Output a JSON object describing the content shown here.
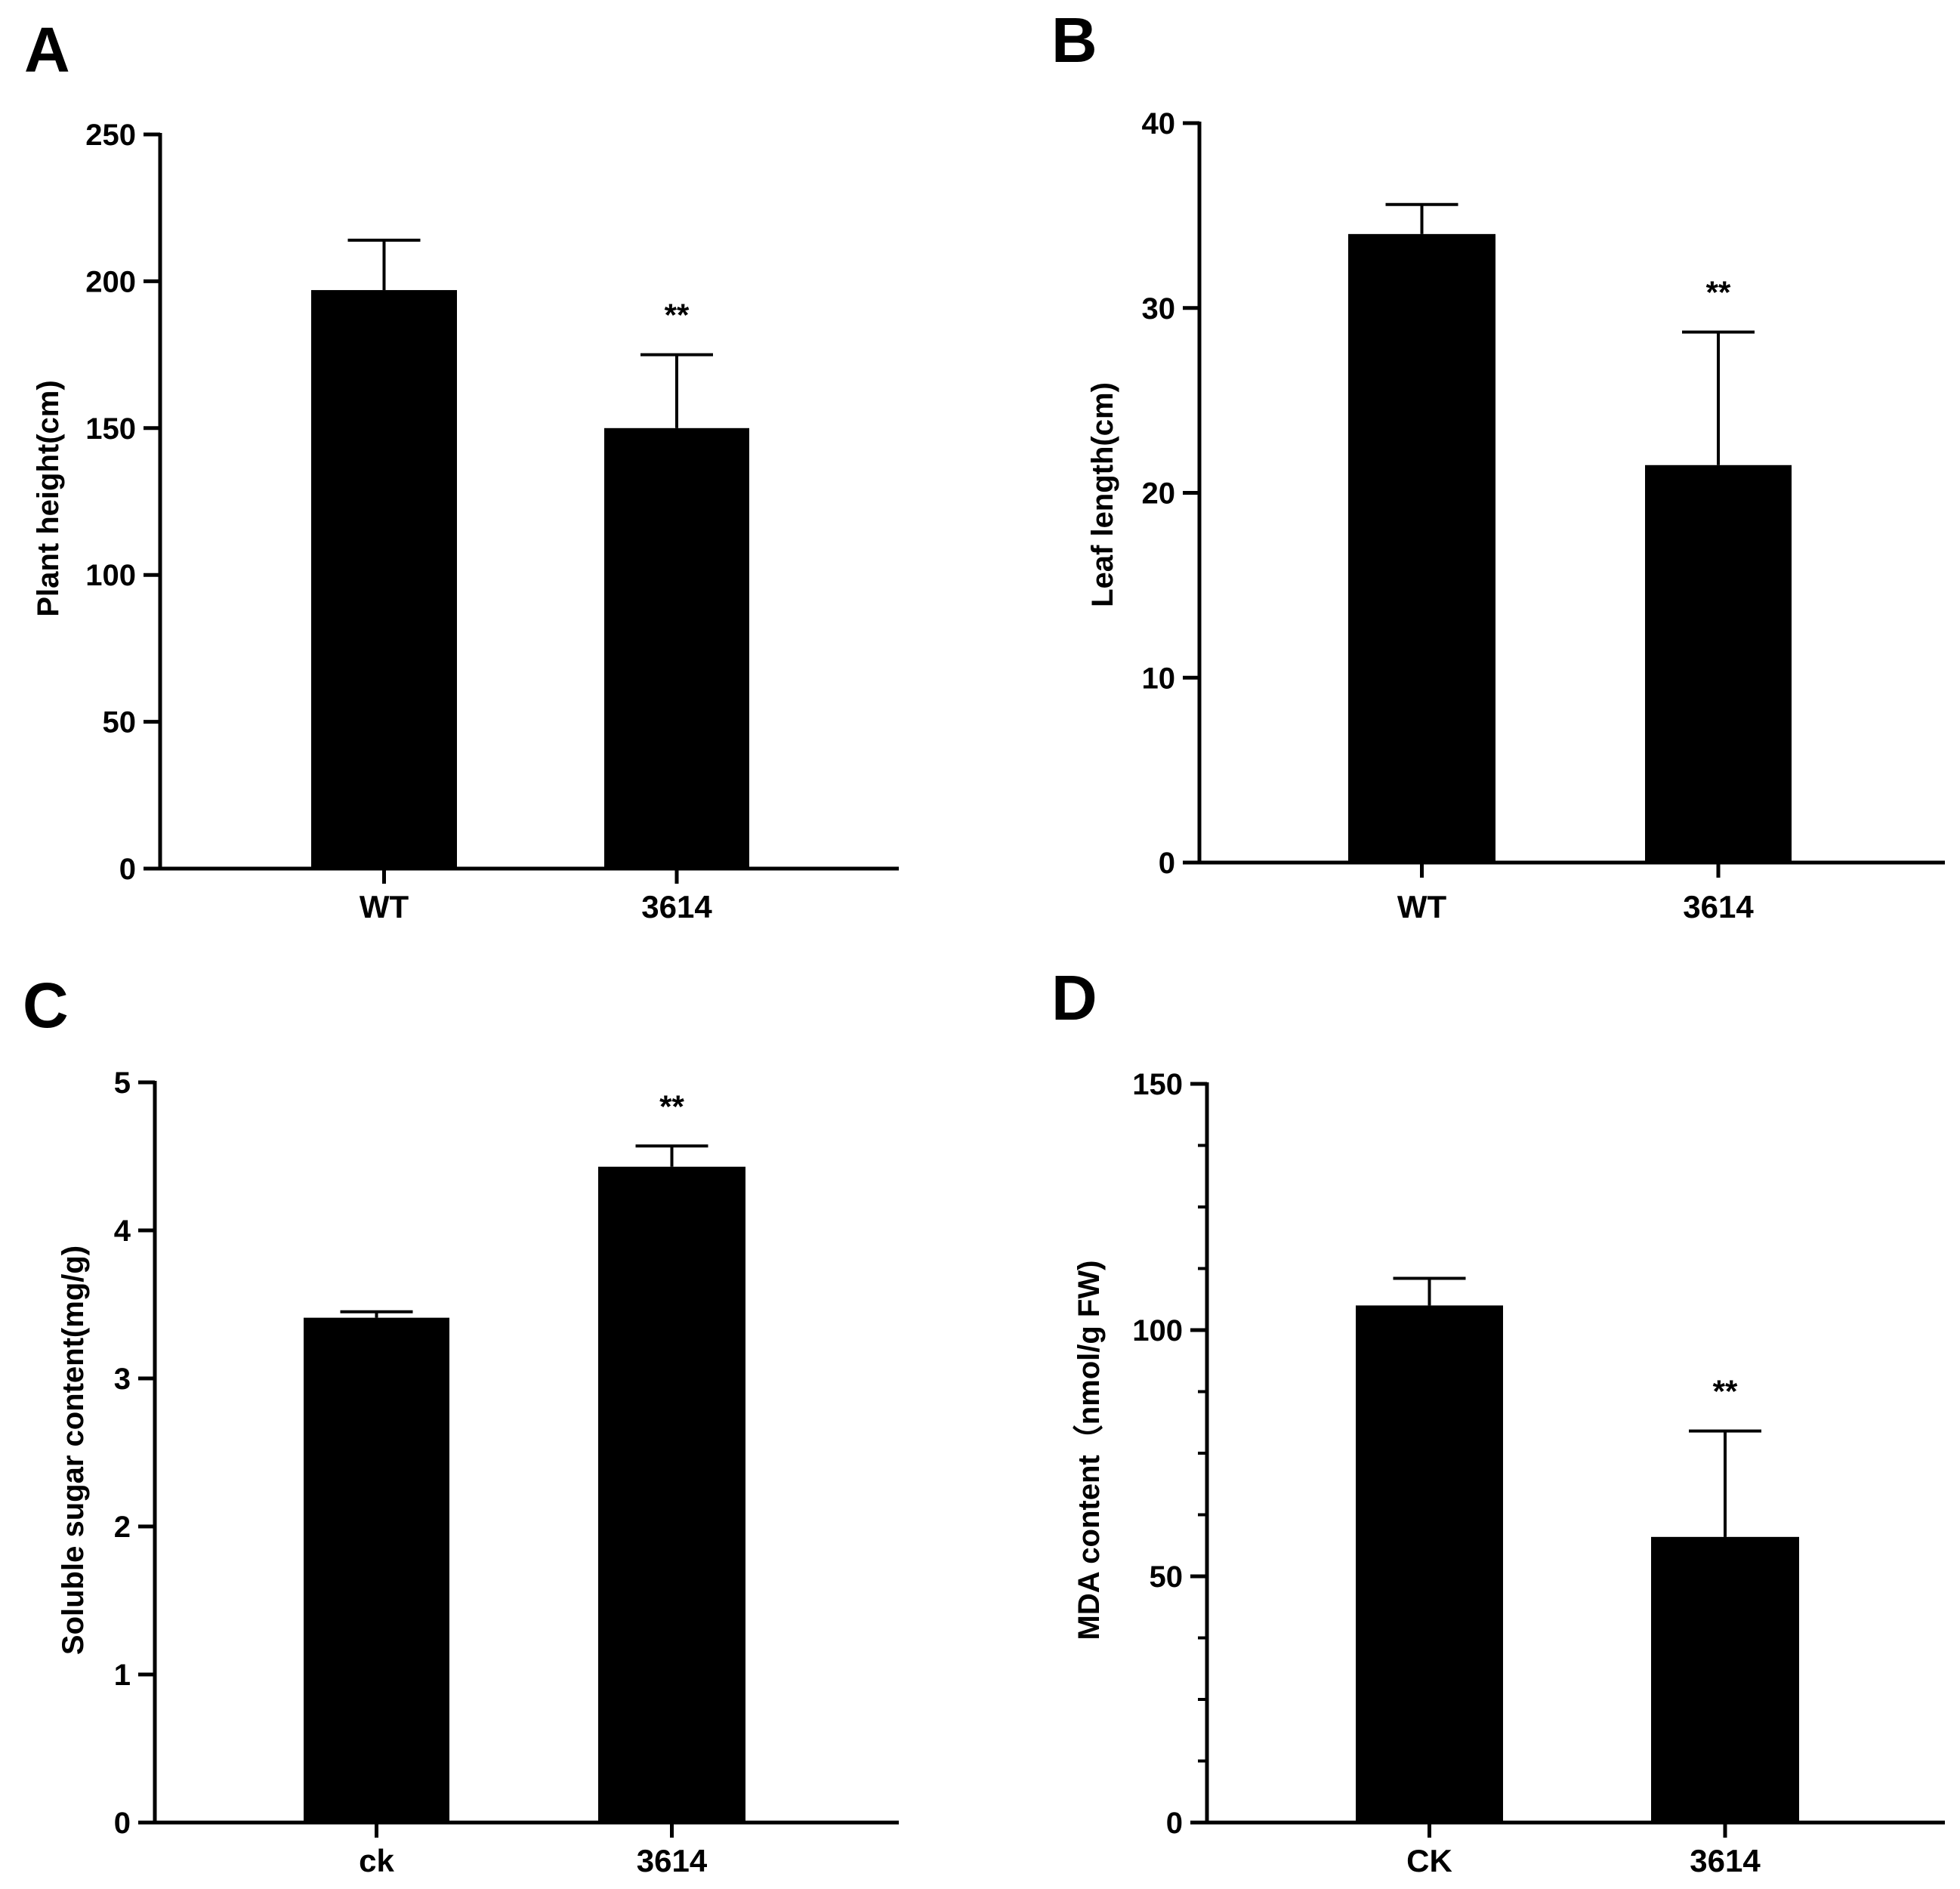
{
  "chart_data": [
    {
      "panel": "A",
      "type": "bar",
      "categories": [
        "WT",
        "3614"
      ],
      "values": [
        197,
        150
      ],
      "errors": [
        17,
        25
      ],
      "significance": [
        "",
        "**"
      ],
      "ylabel": "Plant height(cm)",
      "xlabel": "",
      "ylim": [
        0,
        250
      ],
      "yticks": [
        0,
        50,
        100,
        150,
        200,
        250
      ],
      "minor_ticks": []
    },
    {
      "panel": "B",
      "type": "bar",
      "categories": [
        "WT",
        "3614"
      ],
      "values": [
        34,
        21.5
      ],
      "errors": [
        1.6,
        7.2
      ],
      "significance": [
        "",
        "**"
      ],
      "ylabel": "Leaf length(cm)",
      "xlabel": "",
      "ylim": [
        0,
        40
      ],
      "yticks": [
        0,
        10,
        20,
        30,
        40
      ],
      "minor_ticks": []
    },
    {
      "panel": "C",
      "type": "bar",
      "categories": [
        "ck",
        "3614"
      ],
      "values": [
        3.41,
        4.43
      ],
      "errors": [
        0.04,
        0.14
      ],
      "significance": [
        "",
        "**"
      ],
      "ylabel": "Soluble sugar content(mg/g)",
      "xlabel": "",
      "ylim": [
        0,
        5
      ],
      "yticks": [
        0,
        1,
        2,
        3,
        4,
        5
      ],
      "minor_ticks": []
    },
    {
      "panel": "D",
      "type": "bar",
      "categories": [
        "CK",
        "3614"
      ],
      "values": [
        105,
        58
      ],
      "errors": [
        5.5,
        21.5
      ],
      "significance": [
        "",
        "**"
      ],
      "ylabel": "MDA content（nmol/g FW)",
      "xlabel": "",
      "ylim": [
        0,
        150
      ],
      "yticks": [
        0,
        50,
        100,
        150
      ],
      "minor_ticks": [
        12.5,
        25,
        37.5,
        62.5,
        75,
        87.5,
        112.5,
        125,
        137.5
      ]
    }
  ]
}
